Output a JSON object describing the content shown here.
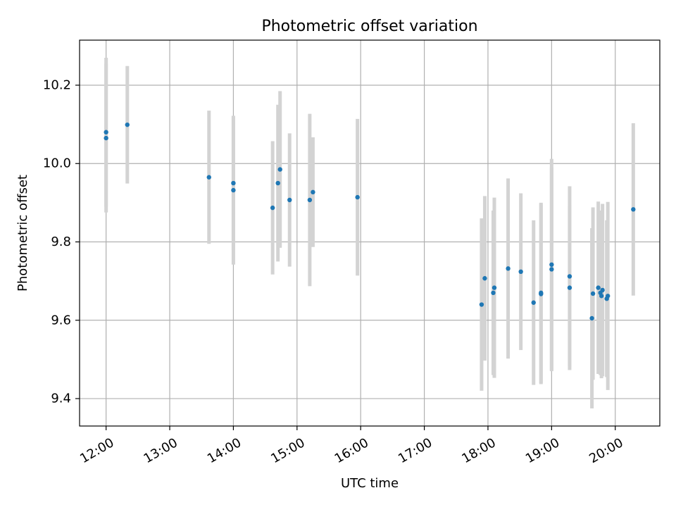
{
  "chart_data": {
    "type": "scatter",
    "title": "Photometric offset variation",
    "xlabel": "UTC time",
    "ylabel": "Photometric offset",
    "xlim": [
      "11:35",
      "20:42"
    ],
    "ylim": [
      9.33,
      10.315
    ],
    "x_ticks": [
      "12:00",
      "13:00",
      "14:00",
      "15:00",
      "16:00",
      "17:00",
      "18:00",
      "19:00",
      "20:00"
    ],
    "y_ticks": [
      "9.4",
      "9.6",
      "9.8",
      "10.0",
      "10.2"
    ],
    "grid": true,
    "colors": {
      "point": "#1f77b4",
      "errorbar": "#d3d3d3",
      "grid": "#b0b0b0"
    },
    "series": [
      {
        "points": [
          {
            "x": "12:00",
            "y": 10.08,
            "err": 0.19
          },
          {
            "x": "12:00",
            "y": 10.065,
            "err": 0.19
          },
          {
            "x": "12:20",
            "y": 10.099,
            "err": 0.15
          },
          {
            "x": "13:37",
            "y": 9.965,
            "err": 0.17
          },
          {
            "x": "14:00",
            "y": 9.95,
            "err": 0.17
          },
          {
            "x": "14:00",
            "y": 9.932,
            "err": 0.19
          },
          {
            "x": "14:37",
            "y": 9.887,
            "err": 0.17
          },
          {
            "x": "14:42",
            "y": 9.95,
            "err": 0.2
          },
          {
            "x": "14:44",
            "y": 9.985,
            "err": 0.2
          },
          {
            "x": "14:53",
            "y": 9.907,
            "err": 0.17
          },
          {
            "x": "15:12",
            "y": 9.907,
            "err": 0.22
          },
          {
            "x": "15:15",
            "y": 9.927,
            "err": 0.14
          },
          {
            "x": "15:57",
            "y": 9.914,
            "err": 0.2
          },
          {
            "x": "17:54",
            "y": 9.64,
            "err": 0.22
          },
          {
            "x": "17:57",
            "y": 9.707,
            "err": 0.21
          },
          {
            "x": "18:05",
            "y": 9.67,
            "err": 0.21
          },
          {
            "x": "18:06",
            "y": 9.683,
            "err": 0.23
          },
          {
            "x": "18:19",
            "y": 9.732,
            "err": 0.23
          },
          {
            "x": "18:31",
            "y": 9.724,
            "err": 0.2
          },
          {
            "x": "18:43",
            "y": 9.645,
            "err": 0.21
          },
          {
            "x": "18:50",
            "y": 9.67,
            "err": 0.23
          },
          {
            "x": "18:50",
            "y": 9.667,
            "err": 0.23
          },
          {
            "x": "19:00",
            "y": 9.742,
            "err": 0.27
          },
          {
            "x": "19:00",
            "y": 9.73,
            "err": 0.26
          },
          {
            "x": "19:17",
            "y": 9.712,
            "err": 0.23
          },
          {
            "x": "19:17",
            "y": 9.683,
            "err": 0.21
          },
          {
            "x": "19:38",
            "y": 9.605,
            "err": 0.23
          },
          {
            "x": "19:39",
            "y": 9.668,
            "err": 0.22
          },
          {
            "x": "19:44",
            "y": 9.683,
            "err": 0.22
          },
          {
            "x": "19:46",
            "y": 9.67,
            "err": 0.21
          },
          {
            "x": "19:47",
            "y": 9.662,
            "err": 0.21
          },
          {
            "x": "19:48",
            "y": 9.677,
            "err": 0.22
          },
          {
            "x": "19:52",
            "y": 9.655,
            "err": 0.2
          },
          {
            "x": "19:53",
            "y": 9.662,
            "err": 0.24
          },
          {
            "x": "20:17",
            "y": 9.883,
            "err": 0.22
          }
        ]
      }
    ]
  }
}
